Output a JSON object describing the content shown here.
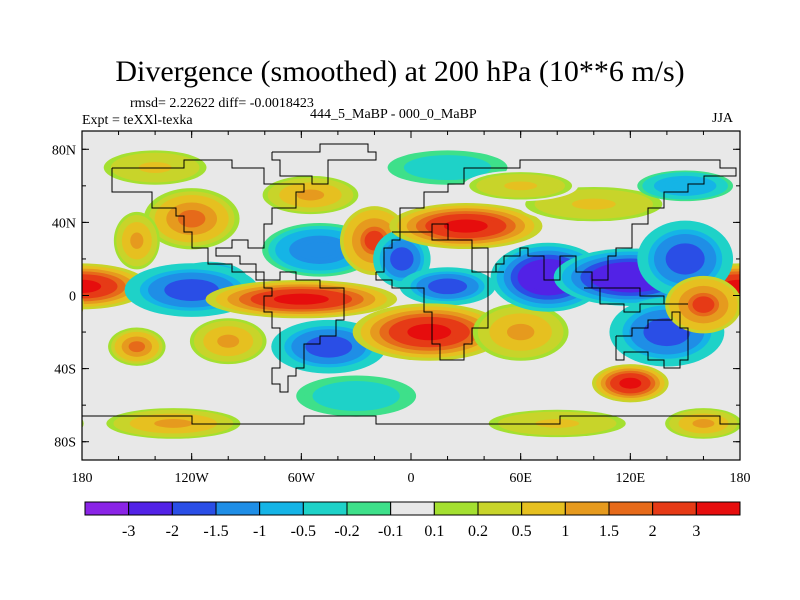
{
  "title": "Divergence (smoothed) at 200 hPa (10**6 m/s)",
  "stats": {
    "rmsd_text": "rmsd= 2.22622 diff= -0.0018423"
  },
  "experiment": {
    "label": "Expt = teXXl-texka"
  },
  "case_label": "444_5_MaBP - 000_0_MaBP",
  "season": "JJA",
  "chart_data": {
    "type": "heatmap",
    "title": "Divergence (smoothed) at 200 hPa (10**6 m/s)",
    "x_ticks": [
      "180",
      "120W",
      "60W",
      "0",
      "60E",
      "120E",
      "180"
    ],
    "x_tick_values": [
      -180,
      -120,
      -60,
      0,
      60,
      120,
      180
    ],
    "y_ticks": [
      "80N",
      "40N",
      "0",
      "40S",
      "80S"
    ],
    "y_tick_values": [
      80,
      40,
      0,
      -40,
      -80
    ],
    "xlim": [
      -180,
      180
    ],
    "ylim": [
      -90,
      90
    ],
    "colorbar": {
      "labels": [
        "-3",
        "-2",
        "-1.5",
        "-1",
        "-0.5",
        "-0.2",
        "-0.1",
        "0.1",
        "0.2",
        "0.5",
        "1",
        "1.5",
        "2",
        "3"
      ],
      "colors": [
        "#8a24e6",
        "#5222e6",
        "#2a4ee6",
        "#1f8ee6",
        "#15b4e6",
        "#1ed2c8",
        "#3ee08a",
        "#e8e8e8",
        "#a4e030",
        "#c8d42a",
        "#e6c020",
        "#e69a1e",
        "#e66a1a",
        "#e63a16",
        "#e60d0d"
      ]
    },
    "blobs": [
      {
        "lon": -180,
        "lat": 5,
        "rx": 35,
        "ry": 12,
        "v": 3
      },
      {
        "lon": -110,
        "lat": 8,
        "rx": 20,
        "ry": 10,
        "v": -3
      },
      {
        "lon": -120,
        "lat": 3,
        "rx": 35,
        "ry": 14,
        "v": -2
      },
      {
        "lon": -60,
        "lat": -2,
        "rx": 50,
        "ry": 10,
        "v": 3
      },
      {
        "lon": -150,
        "lat": -28,
        "rx": 15,
        "ry": 10,
        "v": 1.5
      },
      {
        "lon": -100,
        "lat": -25,
        "rx": 20,
        "ry": 12,
        "v": 1
      },
      {
        "lon": -130,
        "lat": -70,
        "rx": 35,
        "ry": 8,
        "v": 1
      },
      {
        "lon": -120,
        "lat": 42,
        "rx": 25,
        "ry": 16,
        "v": 1.5
      },
      {
        "lon": -150,
        "lat": 30,
        "rx": 12,
        "ry": 15,
        "v": 1
      },
      {
        "lon": -50,
        "lat": 25,
        "rx": 30,
        "ry": 14,
        "v": -1.5
      },
      {
        "lon": -55,
        "lat": 55,
        "rx": 25,
        "ry": 10,
        "v": 1
      },
      {
        "lon": -140,
        "lat": 70,
        "rx": 30,
        "ry": 10,
        "v": 0.5
      },
      {
        "lon": -45,
        "lat": -28,
        "rx": 30,
        "ry": 14,
        "v": -2
      },
      {
        "lon": -30,
        "lat": -55,
        "rx": 35,
        "ry": 12,
        "v": -0.5
      },
      {
        "lon": -20,
        "lat": 30,
        "rx": 18,
        "ry": 18,
        "v": 2
      },
      {
        "lon": -5,
        "lat": 20,
        "rx": 15,
        "ry": 15,
        "v": -2
      },
      {
        "lon": 30,
        "lat": 38,
        "rx": 40,
        "ry": 12,
        "v": 3
      },
      {
        "lon": 20,
        "lat": 5,
        "rx": 25,
        "ry": 10,
        "v": -2
      },
      {
        "lon": 10,
        "lat": -20,
        "rx": 40,
        "ry": 15,
        "v": 3
      },
      {
        "lon": 60,
        "lat": -20,
        "rx": 25,
        "ry": 15,
        "v": 1
      },
      {
        "lon": 75,
        "lat": 10,
        "rx": 30,
        "ry": 18,
        "v": -3
      },
      {
        "lon": 120,
        "lat": 10,
        "rx": 40,
        "ry": 15,
        "v": -3
      },
      {
        "lon": 150,
        "lat": 20,
        "rx": 25,
        "ry": 20,
        "v": -2
      },
      {
        "lon": 140,
        "lat": -20,
        "rx": 30,
        "ry": 18,
        "v": -2
      },
      {
        "lon": 120,
        "lat": -48,
        "rx": 20,
        "ry": 10,
        "v": 3
      },
      {
        "lon": 160,
        "lat": -5,
        "rx": 20,
        "ry": 15,
        "v": 2
      },
      {
        "lon": 20,
        "lat": 70,
        "rx": 35,
        "ry": 10,
        "v": -0.5
      },
      {
        "lon": 100,
        "lat": 50,
        "rx": 40,
        "ry": 10,
        "v": 0.5
      },
      {
        "lon": 150,
        "lat": 60,
        "rx": 25,
        "ry": 8,
        "v": -1
      },
      {
        "lon": 60,
        "lat": 60,
        "rx": 30,
        "ry": 8,
        "v": 0.5
      },
      {
        "lon": 80,
        "lat": -70,
        "rx": 40,
        "ry": 8,
        "v": 0.5
      },
      {
        "lon": 160,
        "lat": -70,
        "rx": 20,
        "ry": 8,
        "v": 1
      }
    ]
  }
}
